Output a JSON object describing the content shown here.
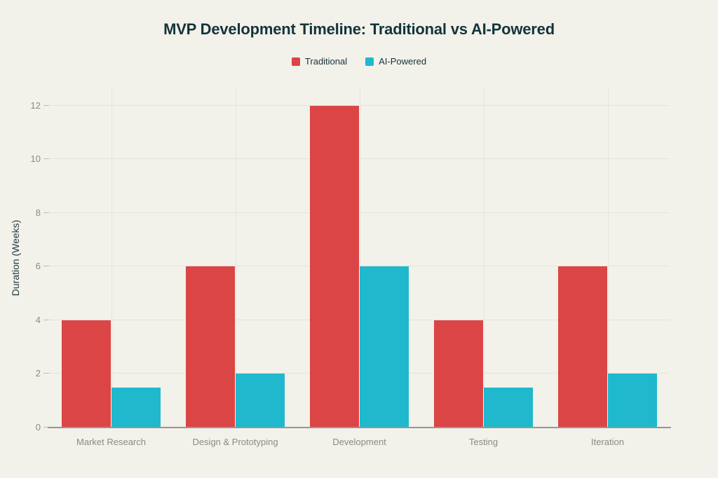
{
  "chart_data": {
    "type": "bar",
    "title": "MVP Development Timeline: Traditional vs AI-Powered",
    "categories": [
      "Market Research",
      "Design & Prototyping",
      "Development",
      "Testing",
      "Iteration"
    ],
    "series": [
      {
        "name": "Traditional",
        "color": "#DB4545",
        "values": [
          4,
          6,
          12,
          4,
          6
        ]
      },
      {
        "name": "AI-Powered",
        "color": "#1FB8CD",
        "values": [
          1.5,
          2,
          6,
          1.5,
          2
        ]
      }
    ],
    "xlabel": "",
    "ylabel": "Duration (Weeks)",
    "yticks": [
      0,
      2,
      4,
      6,
      8,
      10,
      12
    ],
    "ylim": [
      0,
      12.67
    ],
    "grid": true,
    "legend_position": "top-center",
    "bar_group_fraction": 0.8,
    "colors": {
      "background": "#F2F1EA",
      "title_text": "#13343B",
      "axis_tick_text": "#8A8A86",
      "gridline": "#E3E2DB",
      "axis_line": "#979692",
      "y_axis_title_text": "#1E3A42"
    }
  }
}
